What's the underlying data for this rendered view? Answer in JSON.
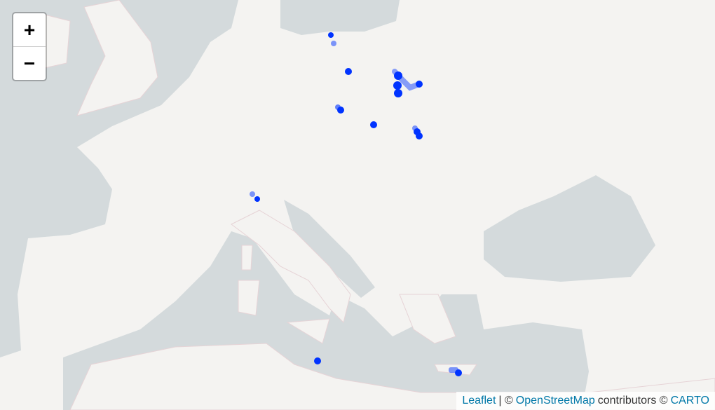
{
  "controls": {
    "zoom_in": "+",
    "zoom_out": "−"
  },
  "attribution": {
    "leaflet": "Leaflet",
    "separator": "| ©",
    "osm": "OpenStreetMap",
    "contributors": "contributors ©",
    "carto": "CARTO"
  }
}
